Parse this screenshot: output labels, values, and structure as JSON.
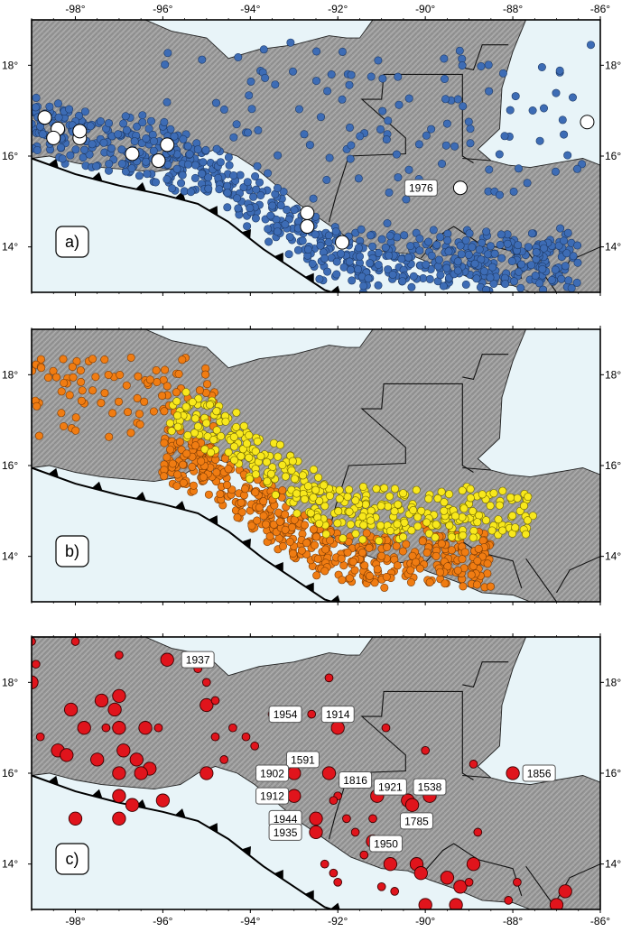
{
  "figure": {
    "x_ticks": [
      "-98°",
      "-96°",
      "-94°",
      "-92°",
      "-90°",
      "-88°",
      "-86°"
    ],
    "y_ticks": [
      "18°",
      "16°",
      "14°"
    ],
    "x_tick_lons": [
      -98,
      -96,
      -94,
      -92,
      -90,
      -88,
      -86
    ],
    "y_tick_lats": [
      18,
      16,
      14
    ],
    "lon_range": [
      -99,
      -86
    ],
    "lat_range": [
      13,
      19
    ]
  },
  "colors": {
    "ocean": "#e8f4f8",
    "land": "#9a9a9a",
    "panel_a_epicenter": "#3d6cb5",
    "panel_b_shallow": "#f07c12",
    "panel_b_deep": "#f8e81c",
    "panel_c_event": "#e0141c",
    "large_event": "#ffffff"
  },
  "panels": [
    {
      "label": "a)",
      "annotations": [
        {
          "text": "1976",
          "lon": -89.2,
          "lat": 15.3
        }
      ],
      "large_events": [
        {
          "lon": -98.7,
          "lat": 16.85
        },
        {
          "lon": -98.4,
          "lat": 16.6
        },
        {
          "lon": -98.5,
          "lat": 16.4
        },
        {
          "lon": -97.9,
          "lat": 16.4
        },
        {
          "lon": -97.9,
          "lat": 16.55
        },
        {
          "lon": -96.7,
          "lat": 16.05
        },
        {
          "lon": -96.1,
          "lat": 15.9
        },
        {
          "lon": -95.9,
          "lat": 16.25
        },
        {
          "lon": -92.7,
          "lat": 14.75
        },
        {
          "lon": -92.7,
          "lat": 14.45
        },
        {
          "lon": -91.9,
          "lat": 14.1
        },
        {
          "lon": -89.2,
          "lat": 15.3
        },
        {
          "lon": -86.3,
          "lat": 16.75
        }
      ]
    },
    {
      "label": "b)",
      "annotations": [],
      "large_events": []
    },
    {
      "label": "c)",
      "annotations": [
        {
          "text": "1937",
          "lon": -95.2,
          "lat": 18.5
        },
        {
          "text": "1954",
          "lon": -93.2,
          "lat": 17.3
        },
        {
          "text": "1914",
          "lon": -92.0,
          "lat": 17.3
        },
        {
          "text": "1591",
          "lon": -92.8,
          "lat": 16.3
        },
        {
          "text": "1902",
          "lon": -93.5,
          "lat": 16.0
        },
        {
          "text": "1816",
          "lon": -91.6,
          "lat": 15.85
        },
        {
          "text": "1921",
          "lon": -90.8,
          "lat": 15.7
        },
        {
          "text": "1538",
          "lon": -89.9,
          "lat": 15.7
        },
        {
          "text": "1856",
          "lon": -87.4,
          "lat": 16.0
        },
        {
          "text": "1912",
          "lon": -93.5,
          "lat": 15.5
        },
        {
          "text": "1785",
          "lon": -90.2,
          "lat": 14.95
        },
        {
          "text": "1944",
          "lon": -93.2,
          "lat": 15.0
        },
        {
          "text": "1935",
          "lon": -93.2,
          "lat": 14.7
        },
        {
          "text": "1950",
          "lon": -90.9,
          "lat": 14.45
        }
      ],
      "events": [
        {
          "lon": -95.9,
          "lat": 18.5,
          "m": "L"
        },
        {
          "lon": -99.0,
          "lat": 18.0,
          "m": "L"
        },
        {
          "lon": -98.1,
          "lat": 17.4,
          "m": "L"
        },
        {
          "lon": -97.4,
          "lat": 17.6,
          "m": "L"
        },
        {
          "lon": -97.0,
          "lat": 17.7,
          "m": "L"
        },
        {
          "lon": -97.1,
          "lat": 17.4,
          "m": "L"
        },
        {
          "lon": -97.8,
          "lat": 17.0,
          "m": "L"
        },
        {
          "lon": -97.0,
          "lat": 17.0,
          "m": "L"
        },
        {
          "lon": -96.4,
          "lat": 17.0,
          "m": "L"
        },
        {
          "lon": -95.0,
          "lat": 17.5,
          "m": "L"
        },
        {
          "lon": -98.4,
          "lat": 16.5,
          "m": "L"
        },
        {
          "lon": -98.2,
          "lat": 16.4,
          "m": "L"
        },
        {
          "lon": -97.5,
          "lat": 16.3,
          "m": "L"
        },
        {
          "lon": -96.9,
          "lat": 16.5,
          "m": "L"
        },
        {
          "lon": -96.6,
          "lat": 16.3,
          "m": "L"
        },
        {
          "lon": -96.3,
          "lat": 16.1,
          "m": "L"
        },
        {
          "lon": -97.0,
          "lat": 16.0,
          "m": "L"
        },
        {
          "lon": -96.5,
          "lat": 16.0,
          "m": "L"
        },
        {
          "lon": -95.0,
          "lat": 16.0,
          "m": "L"
        },
        {
          "lon": -96.7,
          "lat": 15.3,
          "m": "L"
        },
        {
          "lon": -97.0,
          "lat": 15.5,
          "m": "L"
        },
        {
          "lon": -98.0,
          "lat": 15.0,
          "m": "L"
        },
        {
          "lon": -97.0,
          "lat": 15.0,
          "m": "L"
        },
        {
          "lon": -96.0,
          "lat": 15.4,
          "m": "L"
        },
        {
          "lon": -93.0,
          "lat": 16.0,
          "m": "L"
        },
        {
          "lon": -92.2,
          "lat": 16.0,
          "m": "L"
        },
        {
          "lon": -92.0,
          "lat": 17.0,
          "m": "L"
        },
        {
          "lon": -93.0,
          "lat": 15.5,
          "m": "L"
        },
        {
          "lon": -91.1,
          "lat": 15.5,
          "m": "L"
        },
        {
          "lon": -90.4,
          "lat": 15.4,
          "m": "L"
        },
        {
          "lon": -90.3,
          "lat": 15.3,
          "m": "L"
        },
        {
          "lon": -89.9,
          "lat": 15.5,
          "m": "L"
        },
        {
          "lon": -92.5,
          "lat": 15.0,
          "m": "L"
        },
        {
          "lon": -92.5,
          "lat": 14.7,
          "m": "L"
        },
        {
          "lon": -91.2,
          "lat": 14.5,
          "m": "L"
        },
        {
          "lon": -90.2,
          "lat": 14.0,
          "m": "L"
        },
        {
          "lon": -90.1,
          "lat": 13.8,
          "m": "L"
        },
        {
          "lon": -89.5,
          "lat": 13.7,
          "m": "L"
        },
        {
          "lon": -89.2,
          "lat": 13.5,
          "m": "L"
        },
        {
          "lon": -88.9,
          "lat": 14.0,
          "m": "L"
        },
        {
          "lon": -88.0,
          "lat": 16.0,
          "m": "L"
        },
        {
          "lon": -86.8,
          "lat": 13.4,
          "m": "L"
        },
        {
          "lon": -87.0,
          "lat": 13.1,
          "m": "L"
        },
        {
          "lon": -89.3,
          "lat": 13.1,
          "m": "L"
        },
        {
          "lon": -90.0,
          "lat": 13.1,
          "m": "L"
        },
        {
          "lon": -90.8,
          "lat": 14.0,
          "m": "L"
        },
        {
          "lon": -99.0,
          "lat": 18.9,
          "m": "S"
        },
        {
          "lon": -98.9,
          "lat": 18.4,
          "m": "S"
        },
        {
          "lon": -98.0,
          "lat": 18.9,
          "m": "S"
        },
        {
          "lon": -97.0,
          "lat": 18.6,
          "m": "S"
        },
        {
          "lon": -96.1,
          "lat": 17.0,
          "m": "S"
        },
        {
          "lon": -95.2,
          "lat": 18.3,
          "m": "S"
        },
        {
          "lon": -95.0,
          "lat": 18.0,
          "m": "S"
        },
        {
          "lon": -94.8,
          "lat": 17.6,
          "m": "S"
        },
        {
          "lon": -94.4,
          "lat": 17.0,
          "m": "S"
        },
        {
          "lon": -94.8,
          "lat": 16.8,
          "m": "S"
        },
        {
          "lon": -94.6,
          "lat": 16.3,
          "m": "S"
        },
        {
          "lon": -94.1,
          "lat": 16.8,
          "m": "S"
        },
        {
          "lon": -93.9,
          "lat": 16.6,
          "m": "S"
        },
        {
          "lon": -93.5,
          "lat": 17.3,
          "m": "S"
        },
        {
          "lon": -92.2,
          "lat": 18.1,
          "m": "S"
        },
        {
          "lon": -98.8,
          "lat": 16.8,
          "m": "S"
        },
        {
          "lon": -97.3,
          "lat": 17.0,
          "m": "S"
        },
        {
          "lon": -92.6,
          "lat": 17.3,
          "m": "S"
        },
        {
          "lon": -92.0,
          "lat": 15.5,
          "m": "S"
        },
        {
          "lon": -92.1,
          "lat": 15.4,
          "m": "S"
        },
        {
          "lon": -91.8,
          "lat": 15.0,
          "m": "S"
        },
        {
          "lon": -91.6,
          "lat": 14.7,
          "m": "S"
        },
        {
          "lon": -91.2,
          "lat": 15.0,
          "m": "S"
        },
        {
          "lon": -91.4,
          "lat": 14.2,
          "m": "S"
        },
        {
          "lon": -92.3,
          "lat": 14.0,
          "m": "S"
        },
        {
          "lon": -92.1,
          "lat": 13.8,
          "m": "S"
        },
        {
          "lon": -92.0,
          "lat": 13.6,
          "m": "S"
        },
        {
          "lon": -90.9,
          "lat": 17.0,
          "m": "S"
        },
        {
          "lon": -90.0,
          "lat": 16.5,
          "m": "S"
        },
        {
          "lon": -88.9,
          "lat": 16.2,
          "m": "S"
        },
        {
          "lon": -88.8,
          "lat": 14.7,
          "m": "S"
        },
        {
          "lon": -89.0,
          "lat": 13.6,
          "m": "S"
        },
        {
          "lon": -88.1,
          "lat": 13.2,
          "m": "S"
        },
        {
          "lon": -87.9,
          "lat": 13.6,
          "m": "S"
        },
        {
          "lon": -91.0,
          "lat": 13.5,
          "m": "S"
        },
        {
          "lon": -90.7,
          "lat": 13.4,
          "m": "S"
        }
      ]
    }
  ]
}
